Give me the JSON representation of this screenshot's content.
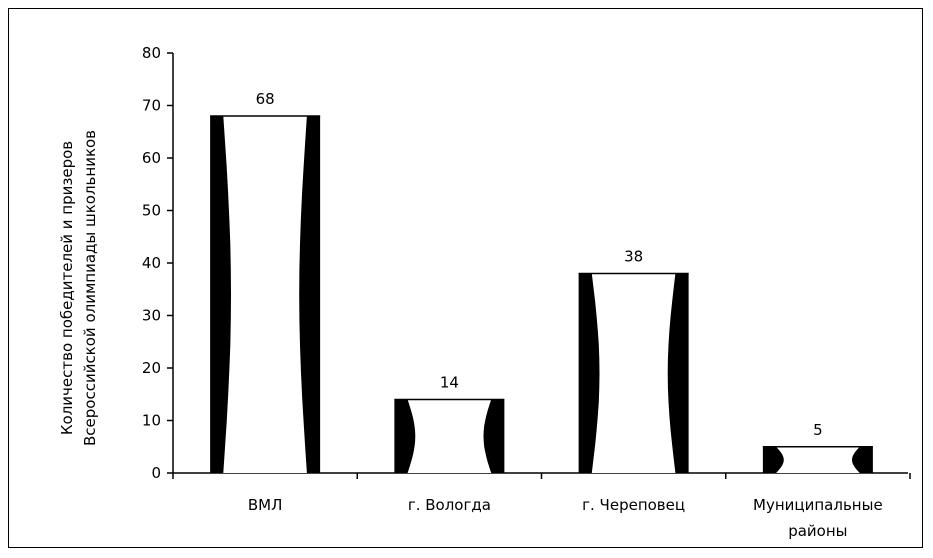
{
  "chart_data": {
    "type": "bar",
    "title": "",
    "xlabel": "",
    "ylabel": [
      "Количество победителей и призеров",
      "Всероссийской олимпиады школьников"
    ],
    "categories": [
      [
        "ВМЛ"
      ],
      [
        "г. Вологда"
      ],
      [
        "г. Череповец"
      ],
      [
        "Муниципальные",
        "районы"
      ]
    ],
    "values": [
      68,
      14,
      38,
      5
    ],
    "data_labels": [
      "68",
      "14",
      "38",
      "5"
    ],
    "ylim": [
      0,
      80
    ],
    "yticks": [
      "0",
      "10",
      "20",
      "30",
      "40",
      "50",
      "60",
      "70",
      "80"
    ],
    "grid": false,
    "legend": "none",
    "colors": {
      "bar_fill": "#ffffff",
      "bar_edge": "#000000",
      "axis": "#000000"
    }
  }
}
